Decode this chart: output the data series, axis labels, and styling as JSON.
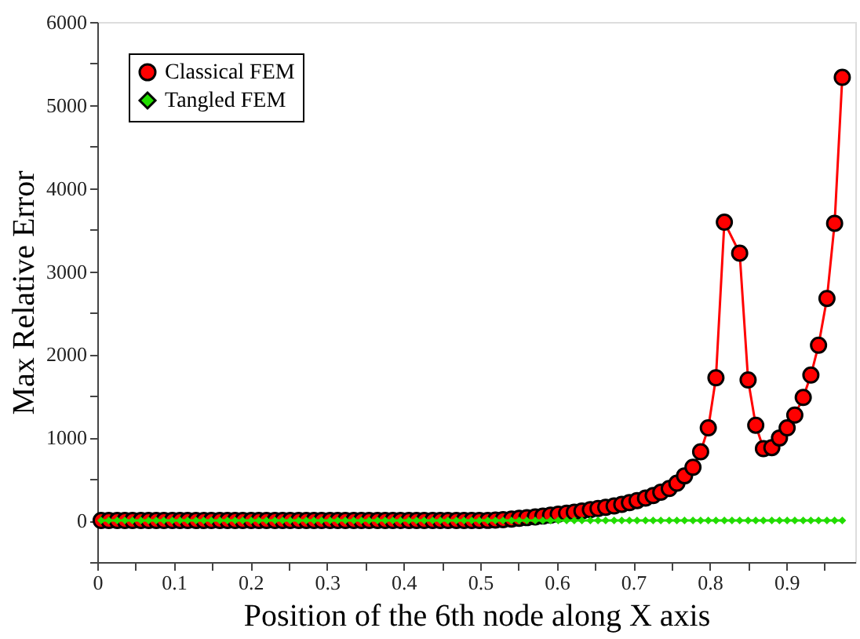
{
  "chart_data": {
    "type": "line",
    "xlabel": "Position of the 6th node along X axis",
    "ylabel": "Max Relative Error",
    "xlim": [
      0,
      0.99
    ],
    "ylim": [
      -500,
      6000
    ],
    "xticks": [
      0,
      {
        "value": 0.05,
        "label": null
      },
      0.1,
      {
        "value": 0.15,
        "label": null
      },
      0.2,
      {
        "value": 0.25,
        "label": null
      },
      0.3,
      {
        "value": 0.35,
        "label": null
      },
      0.4,
      {
        "value": 0.45,
        "label": null
      },
      0.5,
      {
        "value": 0.55,
        "label": null
      },
      0.6,
      {
        "value": 0.65,
        "label": null
      },
      0.7,
      {
        "value": 0.75,
        "label": null
      },
      0.8,
      {
        "value": 0.85,
        "label": null
      },
      0.9,
      {
        "value": 0.95,
        "label": null
      }
    ],
    "yticks": [
      {
        "value": -500,
        "label": null
      },
      0,
      {
        "value": 500,
        "label": null
      },
      1000,
      {
        "value": 1500,
        "label": null
      },
      2000,
      {
        "value": 2500,
        "label": null
      },
      3000,
      {
        "value": 3500,
        "label": null
      },
      4000,
      {
        "value": 4500,
        "label": null
      },
      5000,
      {
        "value": 5500,
        "label": null
      },
      6000
    ],
    "grid": false,
    "legend": "top left",
    "line_style": "solid",
    "series": [
      {
        "name": "Classical FEM",
        "color": "#ff0000",
        "marker": "circle",
        "x": [
          0.005,
          0.015,
          0.026,
          0.036,
          0.046,
          0.057,
          0.067,
          0.077,
          0.087,
          0.098,
          0.108,
          0.118,
          0.129,
          0.139,
          0.149,
          0.16,
          0.17,
          0.18,
          0.19,
          0.201,
          0.211,
          0.221,
          0.232,
          0.242,
          0.252,
          0.263,
          0.273,
          0.283,
          0.293,
          0.304,
          0.314,
          0.324,
          0.335,
          0.345,
          0.355,
          0.366,
          0.376,
          0.386,
          0.396,
          0.407,
          0.417,
          0.427,
          0.438,
          0.448,
          0.458,
          0.469,
          0.479,
          0.489,
          0.499,
          0.51,
          0.52,
          0.53,
          0.541,
          0.551,
          0.561,
          0.572,
          0.582,
          0.592,
          0.602,
          0.613,
          0.623,
          0.633,
          0.644,
          0.654,
          0.664,
          0.675,
          0.685,
          0.695,
          0.705,
          0.716,
          0.726,
          0.736,
          0.747,
          0.757,
          0.767,
          0.778,
          0.788,
          0.798,
          0.808,
          0.819,
          0.839,
          0.85,
          0.86,
          0.87,
          0.881,
          0.891,
          0.901,
          0.911,
          0.922,
          0.932,
          0.942,
          0.953,
          0.963,
          0.973
        ],
        "values": [
          0,
          0,
          0,
          0,
          0,
          0,
          0,
          0,
          0,
          0,
          0,
          0,
          0,
          0,
          0,
          0,
          0,
          0,
          0,
          0,
          0,
          0,
          0,
          0,
          0,
          0,
          0,
          0,
          0,
          0,
          0,
          0,
          0,
          0,
          0,
          0,
          0,
          0,
          0,
          0,
          0,
          0,
          0,
          0,
          0,
          0,
          0,
          0,
          0,
          2,
          5,
          11,
          18,
          26,
          35,
          44,
          54,
          65,
          76,
          88,
          100,
          115,
          130,
          145,
          160,
          175,
          195,
          215,
          240,
          270,
          300,
          340,
          385,
          449,
          538,
          641,
          827,
          1115,
          1718,
          3590,
          3218,
          1692,
          1147,
          865,
          878,
          994,
          1115,
          1269,
          1481,
          1750,
          2109,
          2673,
          3577,
          5333
        ]
      },
      {
        "name": "Tangled FEM",
        "color": "#22dd00",
        "marker": "diamond",
        "x": [
          0.005,
          0.015,
          0.026,
          0.036,
          0.046,
          0.057,
          0.067,
          0.077,
          0.087,
          0.098,
          0.108,
          0.118,
          0.129,
          0.139,
          0.149,
          0.16,
          0.17,
          0.18,
          0.19,
          0.201,
          0.211,
          0.221,
          0.232,
          0.242,
          0.252,
          0.263,
          0.273,
          0.283,
          0.293,
          0.304,
          0.314,
          0.324,
          0.335,
          0.345,
          0.355,
          0.366,
          0.376,
          0.386,
          0.396,
          0.407,
          0.417,
          0.427,
          0.438,
          0.448,
          0.458,
          0.469,
          0.479,
          0.489,
          0.499,
          0.51,
          0.52,
          0.53,
          0.541,
          0.551,
          0.561,
          0.572,
          0.582,
          0.592,
          0.602,
          0.613,
          0.623,
          0.633,
          0.644,
          0.654,
          0.664,
          0.675,
          0.685,
          0.695,
          0.705,
          0.716,
          0.726,
          0.736,
          0.747,
          0.757,
          0.767,
          0.778,
          0.788,
          0.798,
          0.808,
          0.819,
          0.829,
          0.839,
          0.85,
          0.86,
          0.87,
          0.881,
          0.891,
          0.901,
          0.911,
          0.922,
          0.932,
          0.942,
          0.953,
          0.963,
          0.973
        ],
        "values": [
          0,
          0,
          0,
          0,
          0,
          0,
          0,
          0,
          0,
          0,
          0,
          0,
          0,
          0,
          0,
          0,
          0,
          0,
          0,
          0,
          0,
          0,
          0,
          0,
          0,
          0,
          0,
          0,
          0,
          0,
          0,
          0,
          0,
          0,
          0,
          0,
          0,
          0,
          0,
          0,
          0,
          0,
          0,
          0,
          0,
          0,
          0,
          0,
          0,
          0,
          0,
          0,
          0,
          0,
          0,
          0,
          0,
          0,
          0,
          0,
          0,
          0,
          0,
          0,
          0,
          0,
          0,
          0,
          0,
          0,
          0,
          0,
          0,
          0,
          0,
          0,
          0,
          0,
          0,
          0,
          0,
          0,
          0,
          0,
          0,
          0,
          0,
          0,
          0,
          0,
          0,
          0,
          0,
          0,
          0
        ]
      }
    ]
  }
}
